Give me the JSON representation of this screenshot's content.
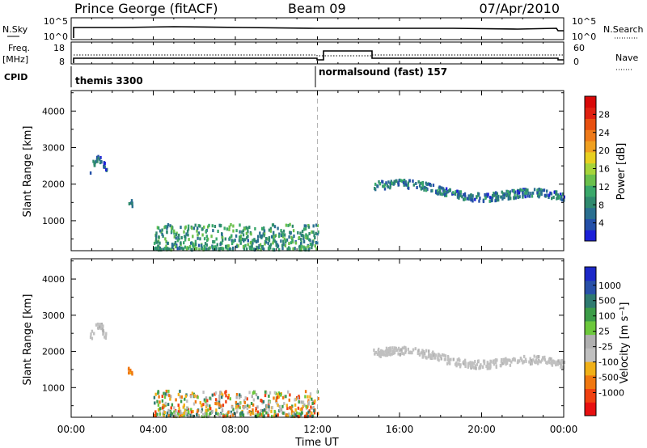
{
  "header": {
    "station": "Prince George (fitACF)",
    "beam": "Beam 09",
    "date": "07/Apr/2010"
  },
  "colors": {
    "axis": "#000000",
    "noon_line": "#b4b4b4",
    "power_scale": [
      "#1c20d8",
      "#2450a8",
      "#2a6f90",
      "#2f8a6e",
      "#3aa86a",
      "#6ac04c",
      "#a6d43a",
      "#e8d020",
      "#f0a020",
      "#ee7a1a",
      "#e85010",
      "#e02010",
      "#d80808"
    ],
    "velocity_scale": [
      "#e81010",
      "#f04010",
      "#f07810",
      "#f0b018",
      "#c0c0c0",
      "#b0b0b0",
      "#6cc83c",
      "#3c9c48",
      "#2e7a70",
      "#2850a8",
      "#1c28c8"
    ]
  },
  "strip": {
    "nsky_label": "N.Sky",
    "nsky_ticks": [
      "10^5",
      "10^0"
    ],
    "nsearch_label": "N.Search",
    "nsearch_ticks": [
      "10^5",
      "10^0"
    ],
    "freq_label": "Freq.",
    "freq_unit": "[MHz]",
    "freq_ticks": [
      "18",
      "8"
    ],
    "nave_label": "Nave",
    "nave_ticks": [
      "60",
      "0"
    ],
    "cpid_label": "CPID",
    "cpid_segments": [
      {
        "label": "themis 3300",
        "start_hour": 0.0,
        "end_hour": 12.0
      },
      {
        "label": "normalsound (fast) 157",
        "start_hour": 12.0,
        "end_hour": 24.0
      }
    ],
    "freq_mhz": [
      {
        "from": 0.0,
        "to": 12.1,
        "value": 10.5
      },
      {
        "from": 12.1,
        "to": 14.8,
        "value": 14.5
      },
      {
        "from": 14.8,
        "to": 24.0,
        "value": 10.5
      }
    ],
    "nave": {
      "before_12": 20,
      "after_12": 20
    }
  },
  "chart_data": [
    {
      "type": "heatmap",
      "title": "",
      "xlabel": "",
      "ylabel": "Slant Range [km]",
      "x_range_hours": [
        0,
        24
      ],
      "ylim": [
        180,
        4560
      ],
      "y_ticks": [
        "1000",
        "2000",
        "3000",
        "4000"
      ],
      "colorbar_label": "Power [dB]",
      "colorbar_ticks": [
        "4",
        "8",
        "12",
        "16",
        "20",
        "24",
        "28"
      ],
      "colorbar_range": [
        0,
        32
      ],
      "echo_regions": [
        {
          "hour_start": 0.9,
          "hour_end": 1.7,
          "range_start_km": 2200,
          "range_end_km": 2850,
          "value": 5
        },
        {
          "hour_start": 2.75,
          "hour_end": 2.95,
          "range_start_km": 1350,
          "range_end_km": 1550,
          "value": 5
        },
        {
          "hour_start": 4.0,
          "hour_end": 12.0,
          "range_start_km": 200,
          "range_end_km": 900,
          "value": 9
        },
        {
          "hour_start": 14.7,
          "hour_end": 24.0,
          "range_start_km": 1450,
          "range_end_km": 2050,
          "value": 6
        }
      ]
    },
    {
      "type": "heatmap",
      "title": "",
      "xlabel": "Time UT",
      "ylabel": "Slant Range [km]",
      "x_range_hours": [
        0,
        24
      ],
      "x_ticks": [
        "00:00",
        "04:00",
        "08:00",
        "12:00",
        "16:00",
        "20:00",
        "00:00"
      ],
      "ylim": [
        180,
        4560
      ],
      "y_ticks": [
        "1000",
        "2000",
        "3000",
        "4000"
      ],
      "colorbar_label": "Velocity [m s⁻¹]",
      "colorbar_ticks": [
        "-1000",
        "-500",
        "-100",
        "-25",
        "25",
        "100",
        "500",
        "1000"
      ],
      "echo_regions": [
        {
          "hour_start": 0.9,
          "hour_end": 1.7,
          "range_start_km": 2200,
          "range_end_km": 2850,
          "class": "ground"
        },
        {
          "hour_start": 2.75,
          "hour_end": 2.95,
          "range_start_km": 1350,
          "range_end_km": 1550,
          "class": "negative"
        },
        {
          "hour_start": 4.0,
          "hour_end": 12.0,
          "range_start_km": 200,
          "range_end_km": 900,
          "class": "mixed"
        },
        {
          "hour_start": 14.7,
          "hour_end": 24.0,
          "range_start_km": 1450,
          "range_end_km": 2050,
          "class": "ground"
        }
      ]
    }
  ]
}
